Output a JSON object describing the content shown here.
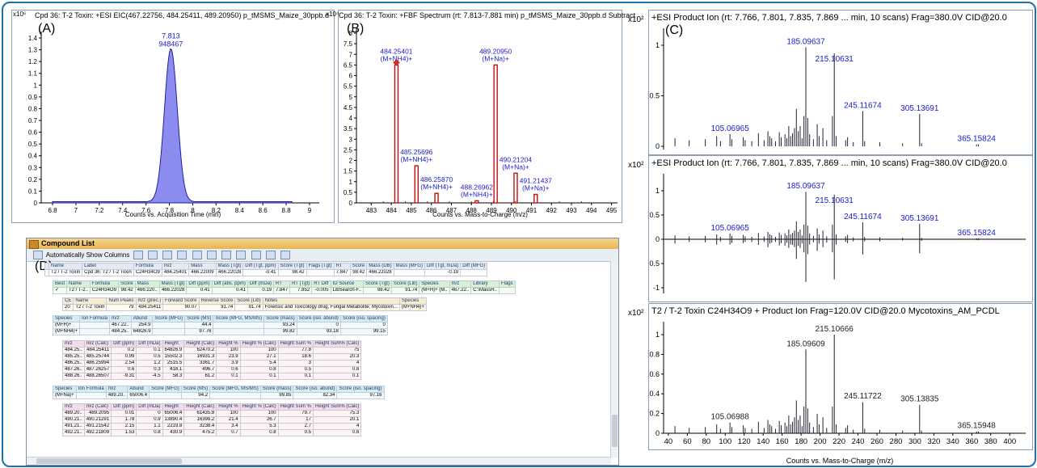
{
  "colors": {
    "frame": "#1f6fa8",
    "spectrum_label": "#1a1acc",
    "eic_fill": "#8c8cf0",
    "ms_bar": "#d62b2b",
    "ms_outline": "#c01010"
  },
  "panelA": {
    "title": "Cpd 36: T-2 Toxin: +ESI EIC(467.22756, 484.25411, 489.20950) p_tMSMS_Maize_30ppb.d",
    "letter": "(A)",
    "exponent": "x10⁶",
    "xlabel": "Counts vs. Acquisition Time (min)",
    "peak_rt": "7.813",
    "peak_area": "948467",
    "yticks": [
      "0",
      "0.1",
      "0.2",
      "0.3",
      "0.4",
      "0.5",
      "0.6",
      "0.7",
      "0.8",
      "0.9",
      "1",
      "1.1",
      "1.2",
      "1.3",
      "1.4"
    ],
    "xticks": [
      "6.8",
      "7",
      "7.2",
      "7.4",
      "7.6",
      "7.8",
      "8",
      "8.2",
      "8.4",
      "8.6",
      "8.8",
      "9"
    ]
  },
  "panelB": {
    "title": "Cpd 36: T-2 Toxin: +FBF Spectrum (rt: 7.813-7.881 min) p_tMSMS_Maize_30ppb.d Subtract",
    "letter": "(B)",
    "exponent": "x10⁴",
    "xlabel": "Counts vs. Mass-to-Charge (m/z)",
    "yticks": [
      "0",
      "0.5",
      "1",
      "1.5",
      "2",
      "2.5",
      "3",
      "3.5",
      "4",
      "4.5",
      "5",
      "5.5",
      "6",
      "6.5",
      "7",
      "7.5",
      "8"
    ],
    "xticks": [
      "483",
      "484",
      "485",
      "486",
      "487",
      "488",
      "489",
      "490",
      "491",
      "492",
      "493",
      "494",
      "495"
    ],
    "peaks": [
      {
        "mz": "484.25401",
        "ion": "(M+NH4)+",
        "x": 484.254,
        "h": 6.5
      },
      {
        "mz": "485.25696",
        "ion": "(M+NH4)+",
        "x": 485.257,
        "h": 1.75
      },
      {
        "mz": "486.25870",
        "ion": "(M+NH4)+",
        "x": 486.259,
        "h": 0.45
      },
      {
        "mz": "488.26962",
        "ion": "(M+NH4)+",
        "x": 488.27,
        "h": 0.1
      },
      {
        "mz": "489.20950",
        "ion": "(M+Na)+",
        "x": 489.21,
        "h": 6.5
      },
      {
        "mz": "490.21204",
        "ion": "(M+Na)+",
        "x": 490.212,
        "h": 1.4
      },
      {
        "mz": "491.21437",
        "ion": "(M+Na)+",
        "x": 491.214,
        "h": 0.4
      }
    ]
  },
  "panelC1": {
    "title": "+ESI Product Ion (rt: 7.766, 7.801, 7.835, 7.869 ... min, 10 scans) Frag=380.0V CID@20.0",
    "letter": "(C)",
    "exponent": "x10²",
    "yticks": [
      "0",
      "0.5",
      "1"
    ],
    "labels": [
      "185.09637",
      "215.10631",
      "245.11674",
      "305.13691",
      "105.06965",
      "365.15824"
    ]
  },
  "panelC2": {
    "title": "+ESI Product Ion (rt: 7.766, 7.801, 7.835, 7.869 ... min, 10 scans) Frag=380.0V CID@20.0",
    "exponent": "x10²",
    "yticks": [
      "1",
      "0.5",
      "0",
      "-0.5",
      "-1"
    ],
    "labels": [
      "185.09637",
      "215.10631",
      "245.11674",
      "305.13691",
      "105.06965",
      "365.15824"
    ]
  },
  "panelC3": {
    "title": "T2 / T-2 Toxin C24H34O9 + Product Ion Frag=120.0V CID@20.0 Mycotoxins_AM_PCDL",
    "exponent": "x10²",
    "yticks": [
      "0",
      "0.2",
      "0.4",
      "0.6",
      "0.8",
      "1"
    ],
    "labels": [
      "215.10666",
      "185.09609",
      "245.11722",
      "305.13835",
      "105.06988",
      "365.15948"
    ],
    "xlabel": "Counts vs. Mass-to-Charge (m/z)",
    "xticks": [
      "40",
      "60",
      "80",
      "100",
      "120",
      "140",
      "160",
      "180",
      "200",
      "220",
      "240",
      "260",
      "280",
      "300",
      "320",
      "340",
      "360",
      "380",
      "400"
    ]
  },
  "panelD": {
    "title": "Compound List",
    "letter": "(D)",
    "toolbar_label": "Automatically Show Columns",
    "header1": [
      "",
      "Name",
      "Label",
      "Formula",
      "m/z",
      "Mass",
      "Mass (Tgt)",
      "Diff (Tgt, ppm)",
      "Score (Tgt)",
      "Flags (Tgt)",
      "RT",
      "Score",
      "Mass (DB)",
      "Mass (MFG)",
      "Diff (Tgt, mDa)",
      "Diff (MFG)"
    ],
    "row1": [
      "",
      "T2 / T-2 Toxin",
      "Cpd 36: T2 / T-2 Toxin",
      "C24H34O9",
      "484.25401",
      "466.22009",
      "466.22028",
      "-0.41",
      "98.42",
      "",
      "7.847",
      "98.42",
      "466.22028",
      "",
      "-0.19",
      ""
    ],
    "header2": [
      "Best",
      "Name",
      "Formula",
      "Score",
      "Mass",
      "Mass (Tgt)",
      "Diff (ppm)",
      "Diff (abs. ppm)",
      "Diff (mDa)",
      "RT",
      "RT (Tgt)",
      "RT Diff",
      "ID Source",
      "Score (Tgt)",
      "Score (Lib)",
      "Species",
      "m/z",
      "Library",
      "Flags"
    ],
    "row2": [
      "✓",
      "T2 / T-2..",
      "C24H34O9",
      "98.42",
      "466.220..",
      "466.22028",
      "0.41",
      "0.41",
      "0.19",
      "7.847",
      "7.852",
      "-0.005",
      "LibSearch-F..",
      "98.42",
      "91.74",
      "(M+H)+ (M..",
      "467.22..",
      "C:\\MassH..",
      ""
    ],
    "header3": [
      "CE",
      "Name",
      "Num Peaks",
      "m/z (prec.)",
      "Forward Score",
      "Reverse Score",
      "Score (Lib)",
      "Notes",
      "Species"
    ],
    "row3": [
      "20",
      "T2 / T-2 Toxin",
      "79",
      "484.25411",
      "90.07",
      "91.74",
      "91.74",
      "Forensic and Toxicology drug; Fungal Metabolite; Mycotoxin...",
      "(M+NH4)+"
    ],
    "header4": [
      "Species",
      "Ion Formula",
      "m/z",
      "Abund",
      "Score (MFG)",
      "Score (MS)",
      "Score (MFG, MS/MS)",
      "Score (mass)",
      "Score (iso. abund)",
      "Score (iso. spacing)"
    ],
    "rows4": [
      [
        "(M+H)+",
        "",
        "467.22..",
        "254.9",
        "",
        "44.4",
        "",
        "93.24",
        "0",
        "0"
      ],
      [
        "(M+NH4)+",
        "",
        "484.25..",
        "64826.9",
        "",
        "97.76",
        "",
        "99.82",
        "93.18",
        "99.15"
      ]
    ],
    "header5": [
      "m/z",
      "m/z (Calc)",
      "Diff (ppm)",
      "Diff (mDa)",
      "Height",
      "Height (Calc)",
      "Height %",
      "Height % (Calc)",
      "Height Sum %",
      "Height Sum% (Calc)"
    ],
    "rows5": [
      [
        "484.25..",
        "484.25411",
        "0.2",
        "0.1",
        "64826.9",
        "62470.2",
        "100",
        "100",
        "77.8",
        "75"
      ],
      [
        "485.25..",
        "485.25744",
        "0.99",
        "0.5",
        "15502.3",
        "16931.3",
        "23.9",
        "27.1",
        "18.6",
        "20.3"
      ],
      [
        "486.25..",
        "486.25994",
        "2.54",
        "1.2",
        "2515.5",
        "3361.7",
        "3.9",
        "5.4",
        "3",
        "4"
      ],
      [
        "487.26..",
        "487.26257",
        "0.6",
        "0.3",
        "418.1",
        "496.7",
        "0.6",
        "0.8",
        "0.5",
        "0.6"
      ],
      [
        "488.26..",
        "488.26507",
        "-9.31",
        "-4.5",
        "58.3",
        "61.2",
        "0.1",
        "0.1",
        "0.1",
        "0.1"
      ]
    ],
    "header6": [
      "Species",
      "Ion Formula",
      "m/z",
      "Abund",
      "Score (MFG)",
      "Score (MS)",
      "Score (MFG, MS/MS)",
      "Score (mass)",
      "Score (iso. abund)",
      "Score (iso. spacing)"
    ],
    "row6": [
      "(M+Na)+",
      "",
      "489.20..",
      "65006.4",
      "",
      "94.2",
      "",
      "99.85",
      "82.34",
      "97.16"
    ],
    "header7": [
      "m/z",
      "m/z (Calc)",
      "Diff (ppm)",
      "Diff (mDa)",
      "Height",
      "Height (Calc)",
      "Height %",
      "Height % (Calc)",
      "Height Sum %",
      "Height Sum% (Calc)"
    ],
    "rows7": [
      [
        "489.20..",
        "489.2095",
        "0.01",
        "0",
        "65006.4",
        "61435.8",
        "100",
        "100",
        "79.7",
        "75.3"
      ],
      [
        "490.21..",
        "490.21291",
        "1.78",
        "0.9",
        "13890.4",
        "16398.2",
        "21.4",
        "26.7",
        "17",
        "20.1"
      ],
      [
        "491.21..",
        "491.21542",
        "2.15",
        "1.1",
        "2219.8",
        "3238.4",
        "3.4",
        "5.3",
        "2.7",
        "4"
      ],
      [
        "492.21..",
        "492.21809",
        "1.53",
        "0.8",
        "430.9",
        "475.2",
        "0.7",
        "0.8",
        "0.5",
        "0.6"
      ]
    ]
  }
}
